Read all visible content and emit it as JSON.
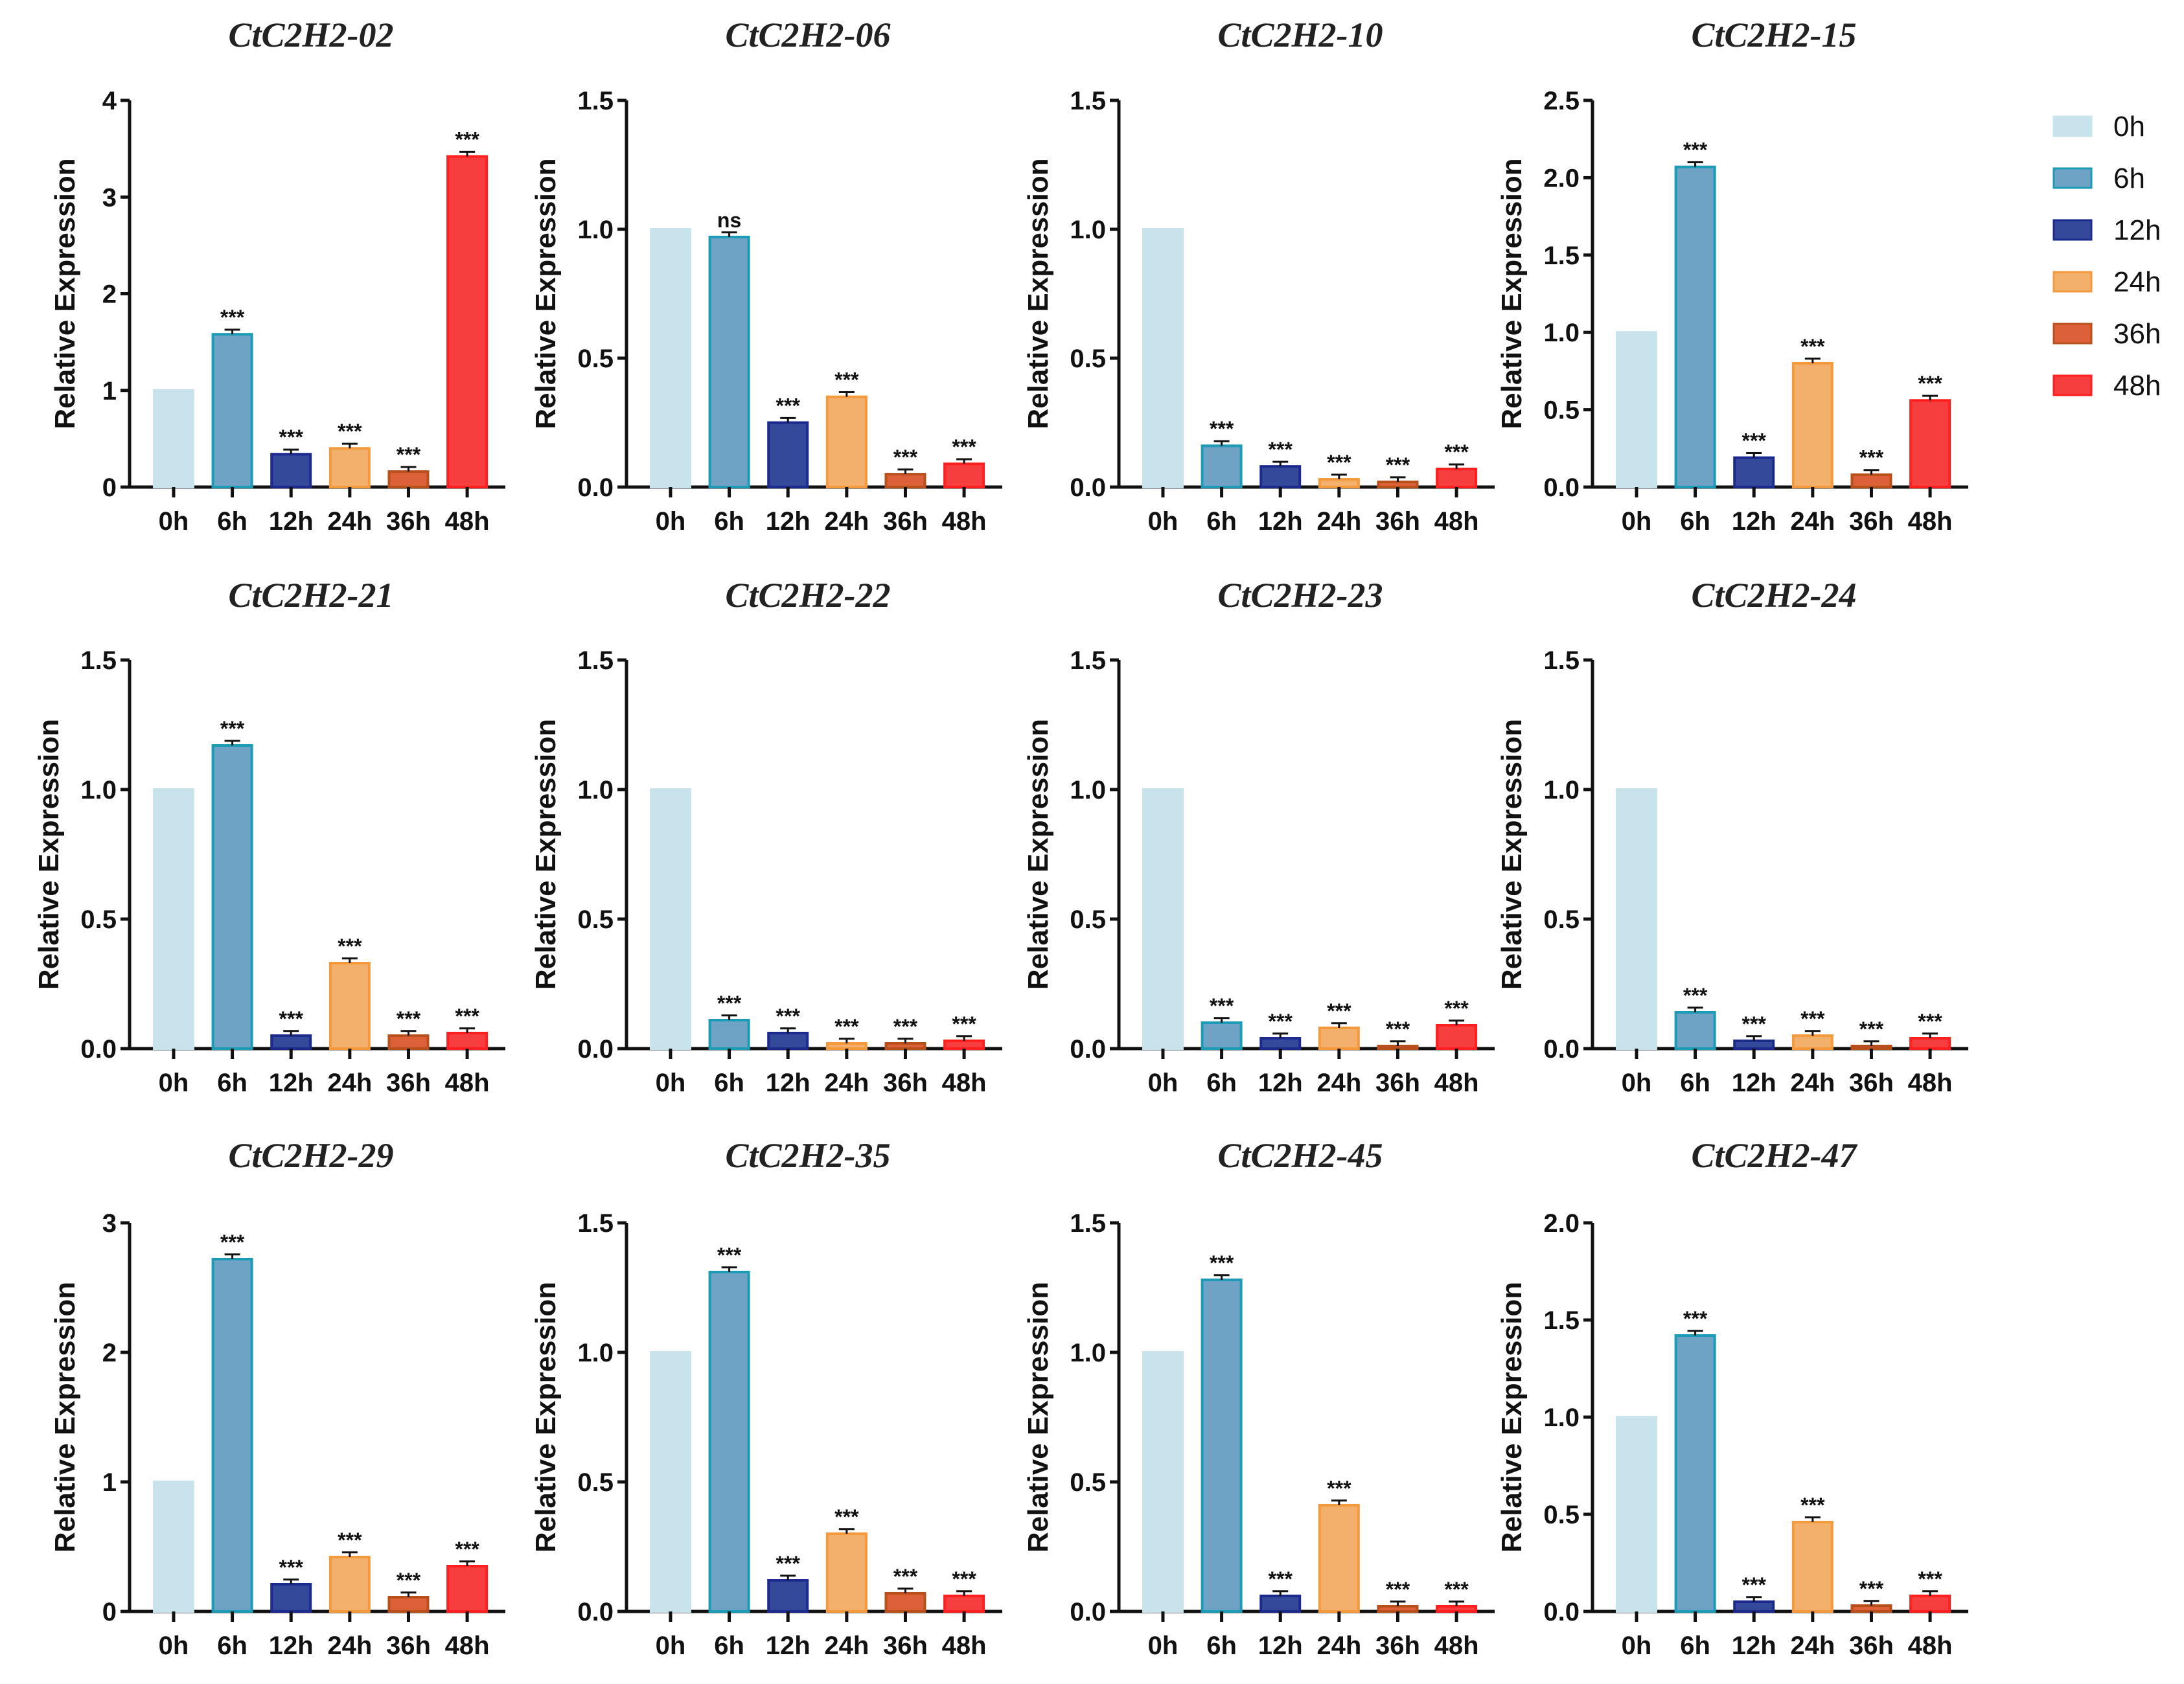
{
  "chart_data": {
    "type": "bar",
    "categories": [
      "0h",
      "6h",
      "12h",
      "24h",
      "36h",
      "48h"
    ],
    "ylabel": "Relative Expression",
    "legend": {
      "placement": "right",
      "entries": [
        "0h",
        "6h",
        "12h",
        "24h",
        "36h",
        "48h"
      ]
    },
    "colors": {
      "fill": [
        "#c8e3ec",
        "#6fa3c6",
        "#34499a",
        "#f3b06d",
        "#dc6038",
        "#f63e3e"
      ],
      "stroke": [
        "#c8e3ec",
        "#1b9bb5",
        "#1b2a8c",
        "#f59a3c",
        "#b8501c",
        "#ff1f1f"
      ]
    },
    "panels": [
      {
        "title": "CtC2H2-02",
        "ylim": [
          0,
          4
        ],
        "ticks": [
          "0",
          "1",
          "2",
          "3",
          "4"
        ],
        "values": [
          1,
          1.58,
          0.34,
          0.4,
          0.16,
          3.42
        ],
        "sig": [
          "",
          "***",
          "***",
          "***",
          "***",
          "***"
        ]
      },
      {
        "title": "CtC2H2-06",
        "ylim": [
          0,
          1.5
        ],
        "ticks": [
          "0.0",
          "0.5",
          "1.0",
          "1.5"
        ],
        "values": [
          1,
          0.97,
          0.25,
          0.35,
          0.05,
          0.09
        ],
        "sig": [
          "",
          "ns",
          "***",
          "***",
          "***",
          "***"
        ]
      },
      {
        "title": "CtC2H2-10",
        "ylim": [
          0,
          1.5
        ],
        "ticks": [
          "0.0",
          "0.5",
          "1.0",
          "1.5"
        ],
        "values": [
          1,
          0.16,
          0.08,
          0.03,
          0.02,
          0.07
        ],
        "sig": [
          "",
          "***",
          "***",
          "***",
          "***",
          "***"
        ]
      },
      {
        "title": "CtC2H2-15",
        "ylim": [
          0,
          2.5
        ],
        "ticks": [
          "0.0",
          "0.5",
          "1.0",
          "1.5",
          "2.0",
          "2.5"
        ],
        "values": [
          1,
          2.07,
          0.19,
          0.8,
          0.08,
          0.56
        ],
        "sig": [
          "",
          "***",
          "***",
          "***",
          "***",
          "***"
        ]
      },
      {
        "title": "CtC2H2-21",
        "ylim": [
          0,
          1.5
        ],
        "ticks": [
          "0.0",
          "0.5",
          "1.0",
          "1.5"
        ],
        "values": [
          1,
          1.17,
          0.05,
          0.33,
          0.05,
          0.06
        ],
        "sig": [
          "",
          "***",
          "***",
          "***",
          "***",
          "***"
        ]
      },
      {
        "title": "CtC2H2-22",
        "ylim": [
          0,
          1.5
        ],
        "ticks": [
          "0.0",
          "0.5",
          "1.0",
          "1.5"
        ],
        "values": [
          1,
          0.11,
          0.06,
          0.02,
          0.02,
          0.03
        ],
        "sig": [
          "",
          "***",
          "***",
          "***",
          "***",
          "***"
        ]
      },
      {
        "title": "CtC2H2-23",
        "ylim": [
          0,
          1.5
        ],
        "ticks": [
          "0.0",
          "0.5",
          "1.0",
          "1.5"
        ],
        "values": [
          1,
          0.1,
          0.04,
          0.08,
          0.01,
          0.09
        ],
        "sig": [
          "",
          "***",
          "***",
          "***",
          "***",
          "***"
        ]
      },
      {
        "title": "CtC2H2-24",
        "ylim": [
          0,
          1.5
        ],
        "ticks": [
          "0.0",
          "0.5",
          "1.0",
          "1.5"
        ],
        "values": [
          1,
          0.14,
          0.03,
          0.05,
          0.01,
          0.04
        ],
        "sig": [
          "",
          "***",
          "***",
          "***",
          "***",
          "***"
        ]
      },
      {
        "title": "CtC2H2-29",
        "ylim": [
          0,
          3
        ],
        "ticks": [
          "0",
          "1",
          "2",
          "3"
        ],
        "values": [
          1,
          2.72,
          0.21,
          0.42,
          0.11,
          0.35
        ],
        "sig": [
          "",
          "***",
          "***",
          "***",
          "***",
          "***"
        ]
      },
      {
        "title": "CtC2H2-35",
        "ylim": [
          0,
          1.5
        ],
        "ticks": [
          "0.0",
          "0.5",
          "1.0",
          "1.5"
        ],
        "values": [
          1,
          1.31,
          0.12,
          0.3,
          0.07,
          0.06
        ],
        "sig": [
          "",
          "***",
          "***",
          "***",
          "***",
          "***"
        ]
      },
      {
        "title": "CtC2H2-45",
        "ylim": [
          0,
          1.5
        ],
        "ticks": [
          "0.0",
          "0.5",
          "1.0",
          "1.5"
        ],
        "values": [
          1,
          1.28,
          0.06,
          0.41,
          0.02,
          0.02
        ],
        "sig": [
          "",
          "***",
          "***",
          "***",
          "***",
          "***"
        ]
      },
      {
        "title": "CtC2H2-47",
        "ylim": [
          0,
          2
        ],
        "ticks": [
          "0.0",
          "0.5",
          "1.0",
          "1.5",
          "2.0"
        ],
        "values": [
          1,
          1.42,
          0.05,
          0.46,
          0.03,
          0.08
        ],
        "sig": [
          "",
          "***",
          "***",
          "***",
          "***",
          "***"
        ]
      }
    ]
  }
}
